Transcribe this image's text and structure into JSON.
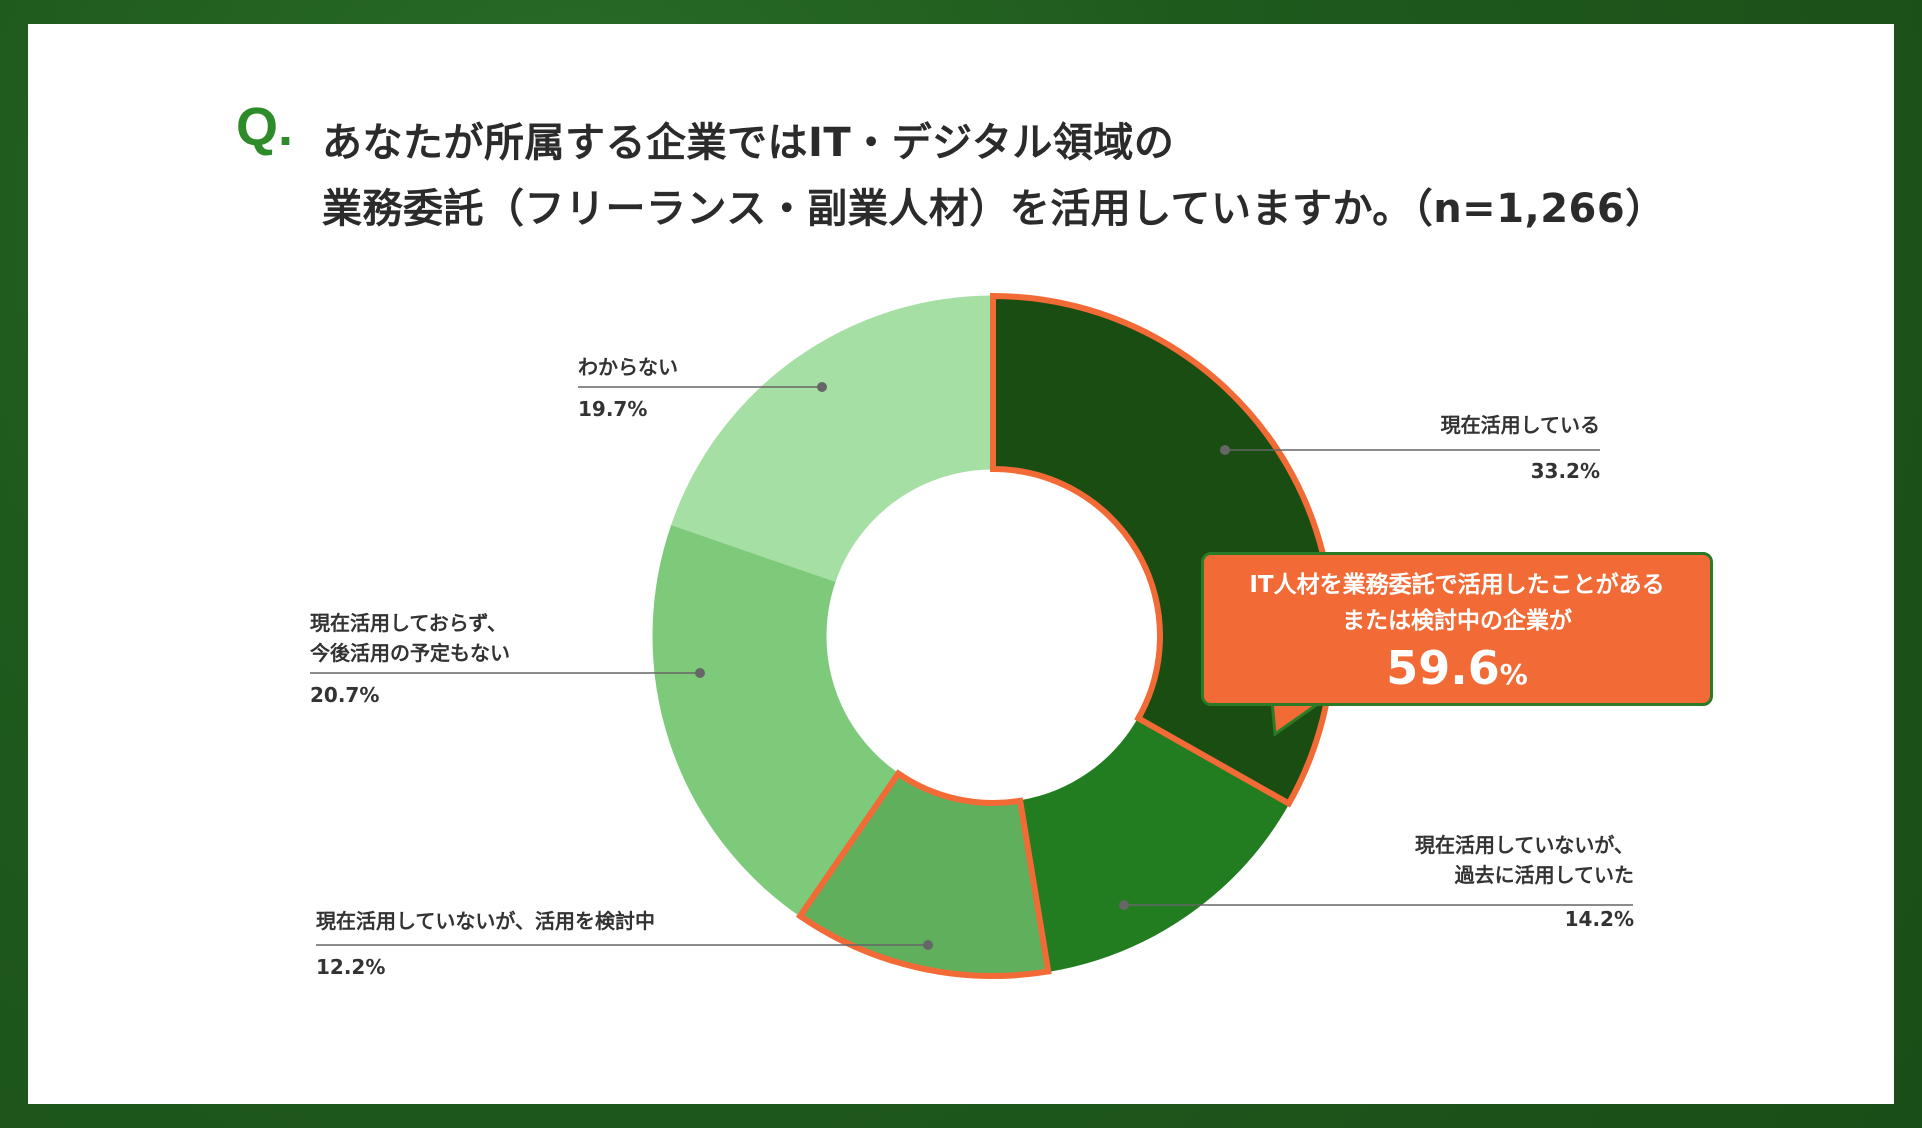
{
  "question": {
    "mark": "Q.",
    "line1": "あなたが所属する企業ではIT・デジタル領域の",
    "line2": "業務委託（フリーランス・副業人材）を活用していますか。（n=1,266）"
  },
  "chart_data": {
    "type": "pie",
    "variant": "donut",
    "slices": [
      {
        "label": "現在活用している",
        "value": 33.2,
        "display": "33.2%",
        "color": "#1a4d12",
        "highlight": true
      },
      {
        "label": "現在活用していないが、過去に活用していた",
        "value": 14.2,
        "display": "14.2%",
        "color": "#217d20",
        "highlight": false
      },
      {
        "label": "現在活用していないが、活用を検討中",
        "value": 12.2,
        "display": "12.2%",
        "color": "#5faf5d",
        "highlight": true
      },
      {
        "label": "現在活用しておらず、今後活用の予定もない",
        "value": 20.7,
        "display": "20.7%",
        "color": "#7dcb7a",
        "highlight": false
      },
      {
        "label": "わからない",
        "value": 19.7,
        "display": "19.7%",
        "color": "#a6dfa4",
        "highlight": false
      }
    ],
    "highlight_color": "#f26b36"
  },
  "labels": {
    "active": {
      "line1": "現在活用している",
      "pct": "33.2%"
    },
    "past": {
      "line1": "現在活用していないが、",
      "line2": "過去に活用していた",
      "pct": "14.2%"
    },
    "considering": {
      "line1": "現在活用していないが、活用を検討中",
      "pct": "12.2%"
    },
    "no_plan": {
      "line1": "現在活用しておらず、",
      "line2": "今後活用の予定もない",
      "pct": "20.7%"
    },
    "unknown": {
      "line1": "わからない",
      "pct": "19.7%"
    }
  },
  "callout": {
    "line1": "IT人材を業務委託で活用したことがある",
    "line2": "または検討中の企業が",
    "value": "59.6",
    "unit": "%"
  }
}
